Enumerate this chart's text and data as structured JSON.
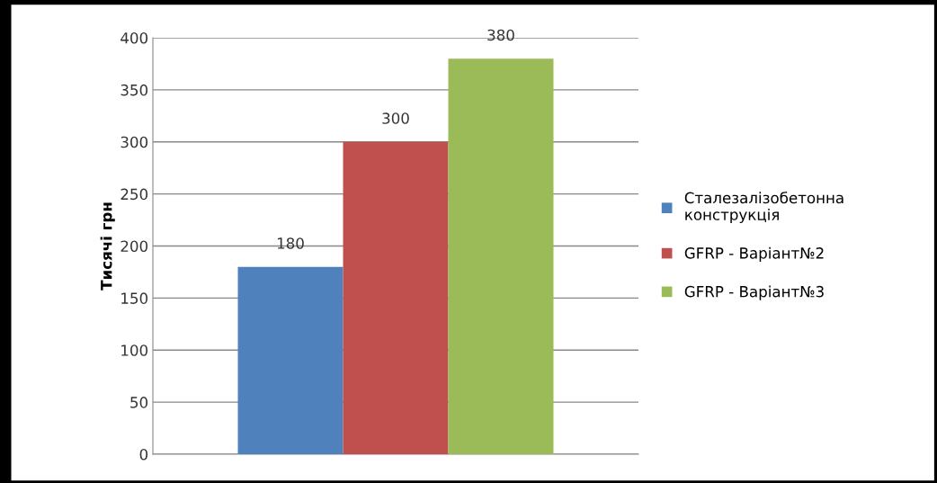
{
  "chart_data": {
    "type": "bar",
    "ylabel": "Тисячі грн",
    "categories": [
      null
    ],
    "series": [
      {
        "name": "Сталезалізобетонна\nконструкція",
        "color": "#4f81bd",
        "values": [
          180
        ]
      },
      {
        "name": "GFRP - Варіант№2",
        "color": "#c0504d",
        "values": [
          300
        ]
      },
      {
        "name": "GFRP - Варіант№3",
        "color": "#9bbb59",
        "values": [
          380
        ]
      }
    ],
    "ylim": [
      0,
      400
    ],
    "yticks": [
      0,
      50,
      100,
      150,
      200,
      250,
      300,
      350,
      400
    ],
    "grid": "y",
    "legend": "right",
    "data_labels": true
  }
}
